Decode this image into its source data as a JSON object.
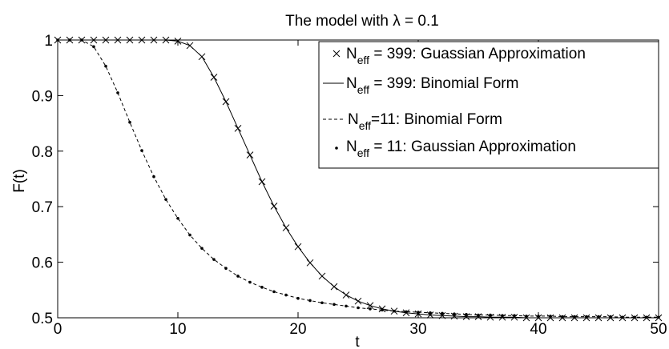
{
  "chart_data": {
    "type": "line",
    "title_prefix": "The model with ",
    "title_symbol": "λ",
    "title_suffix": " = 0.1",
    "xlabel": "t",
    "ylabel": "F(t)",
    "xlim": [
      0,
      50
    ],
    "ylim": [
      0.5,
      1.0
    ],
    "xticks": [
      0,
      10,
      20,
      30,
      40,
      50
    ],
    "yticks": [
      0.5,
      0.6,
      0.7,
      0.8,
      0.9,
      1.0
    ],
    "xtick_labels": [
      "0",
      "10",
      "20",
      "30",
      "40",
      "50"
    ],
    "ytick_labels": [
      "0.5",
      "0.6",
      "0.7",
      "0.8",
      "0.9",
      "1"
    ],
    "grid": false,
    "legend_position": "top-right",
    "series": [
      {
        "legend_main": "N",
        "legend_sub": "eff",
        "legend_rest": " = 399: Guassian Approximation",
        "style": "x-markers",
        "color": "#000000",
        "x": [
          0,
          1,
          2,
          3,
          4,
          5,
          6,
          7,
          8,
          9,
          10,
          11,
          12,
          13,
          14,
          15,
          16,
          17,
          18,
          19,
          20,
          21,
          22,
          23,
          24,
          25,
          26,
          27,
          28,
          29,
          30,
          31,
          32,
          33,
          34,
          35,
          36,
          37,
          38,
          39,
          40,
          41,
          42,
          43,
          44,
          45,
          46,
          47,
          48,
          49,
          50
        ],
        "y": [
          1.0,
          1.0,
          1.0,
          1.0,
          1.0,
          1.0,
          1.0,
          1.0,
          1.0,
          1.0,
          0.998,
          0.99,
          0.97,
          0.933,
          0.889,
          0.841,
          0.793,
          0.745,
          0.701,
          0.662,
          0.628,
          0.599,
          0.575,
          0.556,
          0.541,
          0.53,
          0.522,
          0.516,
          0.512,
          0.509,
          0.507,
          0.505,
          0.504,
          0.503,
          0.502,
          0.502,
          0.501,
          0.501,
          0.501,
          0.5,
          0.5,
          0.5,
          0.5,
          0.5,
          0.5,
          0.5,
          0.5,
          0.5,
          0.5,
          0.5,
          0.5
        ]
      },
      {
        "legend_main": "N",
        "legend_sub": "eff",
        "legend_rest": " = 399: Binomial Form",
        "style": "solid",
        "color": "#000000",
        "x": [
          0,
          1,
          2,
          3,
          4,
          5,
          6,
          7,
          8,
          9,
          10,
          11,
          12,
          13,
          14,
          15,
          16,
          17,
          18,
          19,
          20,
          21,
          22,
          23,
          24,
          25,
          26,
          27,
          28,
          29,
          30,
          31,
          32,
          33,
          34,
          35,
          36,
          37,
          38,
          39,
          40,
          41,
          42,
          43,
          44,
          45,
          46,
          47,
          48,
          49,
          50
        ],
        "y": [
          1.0,
          1.0,
          1.0,
          1.0,
          1.0,
          1.0,
          1.0,
          1.0,
          1.0,
          1.0,
          0.998,
          0.99,
          0.97,
          0.933,
          0.889,
          0.841,
          0.793,
          0.745,
          0.701,
          0.662,
          0.628,
          0.599,
          0.575,
          0.556,
          0.541,
          0.53,
          0.522,
          0.516,
          0.512,
          0.509,
          0.507,
          0.505,
          0.504,
          0.503,
          0.502,
          0.502,
          0.501,
          0.501,
          0.501,
          0.5,
          0.5,
          0.5,
          0.5,
          0.5,
          0.5,
          0.5,
          0.5,
          0.5,
          0.5,
          0.5,
          0.5
        ]
      },
      {
        "legend_main": "N",
        "legend_sub": "eff",
        "legend_rest": "=11: Binomial Form",
        "style": "dashed",
        "color": "#000000",
        "x": [
          0,
          1,
          2,
          3,
          4,
          5,
          6,
          7,
          8,
          9,
          10,
          11,
          12,
          13,
          14,
          15,
          16,
          17,
          18,
          19,
          20,
          21,
          22,
          23,
          24,
          25,
          26,
          27,
          28,
          29,
          30,
          31,
          32,
          33,
          34,
          35,
          36,
          37,
          38,
          39,
          40,
          41,
          42,
          43,
          44,
          45,
          46,
          47,
          48,
          49,
          50
        ],
        "y": [
          1.0,
          1.0,
          1.0,
          0.988,
          0.953,
          0.905,
          0.852,
          0.801,
          0.754,
          0.713,
          0.679,
          0.649,
          0.625,
          0.605,
          0.589,
          0.575,
          0.564,
          0.555,
          0.547,
          0.541,
          0.535,
          0.531,
          0.527,
          0.524,
          0.521,
          0.518,
          0.516,
          0.514,
          0.512,
          0.511,
          0.51,
          0.509,
          0.508,
          0.507,
          0.506,
          0.505,
          0.505,
          0.504,
          0.504,
          0.503,
          0.503,
          0.503,
          0.502,
          0.502,
          0.502,
          0.502,
          0.502,
          0.501,
          0.501,
          0.501,
          0.501
        ]
      },
      {
        "legend_main": "N",
        "legend_sub": "eff",
        "legend_rest": " = 11: Gaussian Approximation",
        "style": "dot-markers",
        "color": "#000000",
        "x": [
          0,
          1,
          2,
          3,
          4,
          5,
          6,
          7,
          8,
          9,
          10,
          11,
          12,
          13,
          14,
          15,
          16,
          17,
          18,
          19,
          20,
          21,
          22,
          23,
          24,
          25,
          26,
          27,
          28,
          29,
          30,
          31,
          32,
          33,
          34,
          35,
          36,
          37,
          38,
          39,
          40,
          41,
          42,
          43,
          44,
          45,
          46,
          47,
          48,
          49,
          50
        ],
        "y": [
          1.0,
          1.0,
          1.0,
          0.988,
          0.953,
          0.905,
          0.852,
          0.801,
          0.754,
          0.713,
          0.679,
          0.649,
          0.625,
          0.605,
          0.589,
          0.575,
          0.564,
          0.555,
          0.547,
          0.541,
          0.535,
          0.531,
          0.527,
          0.524,
          0.521,
          0.518,
          0.516,
          0.514,
          0.512,
          0.511,
          0.51,
          0.509,
          0.508,
          0.507,
          0.506,
          0.505,
          0.505,
          0.504,
          0.504,
          0.503,
          0.503,
          0.503,
          0.502,
          0.502,
          0.502,
          0.502,
          0.502,
          0.501,
          0.501,
          0.501,
          0.501
        ]
      }
    ]
  }
}
